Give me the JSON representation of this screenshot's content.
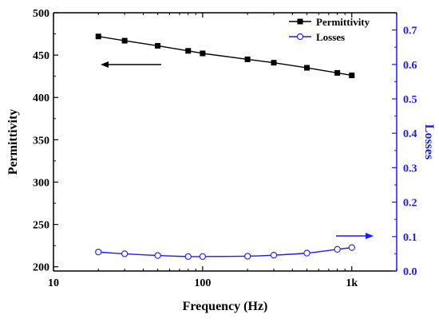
{
  "chart_data": {
    "type": "line",
    "xlabel": "Frequency (Hz)",
    "xscale": "log",
    "xlim": [
      10,
      2000
    ],
    "x_ticks": [
      10,
      100,
      1000
    ],
    "x_tick_labels": [
      "10",
      "100",
      "1k"
    ],
    "y_left": {
      "label": "Permittivity",
      "lim": [
        195,
        500
      ],
      "ticks": [
        200,
        250,
        300,
        350,
        400,
        450,
        500
      ],
      "color": "#000000"
    },
    "y_right": {
      "label": "Losses",
      "lim": [
        0.0,
        0.75
      ],
      "ticks": [
        0.0,
        0.1,
        0.2,
        0.3,
        0.4,
        0.5,
        0.6,
        0.7
      ],
      "color": "#1a1aff"
    },
    "legend_position": "top-right",
    "series": [
      {
        "name": "Permittivity",
        "axis": "left",
        "color": "#000000",
        "marker": "filled-square",
        "x": [
          20,
          30,
          50,
          80,
          100,
          200,
          300,
          500,
          800,
          1000
        ],
        "y": [
          472,
          467,
          461,
          455,
          452,
          445,
          441,
          435,
          429,
          426
        ]
      },
      {
        "name": "Losses",
        "axis": "right",
        "color": "#1a1aff",
        "marker": "open-circle",
        "x": [
          20,
          30,
          50,
          80,
          100,
          200,
          300,
          500,
          800,
          1000
        ],
        "y": [
          0.055,
          0.05,
          0.045,
          0.042,
          0.042,
          0.043,
          0.046,
          0.052,
          0.063,
          0.068
        ]
      }
    ],
    "annotations": [
      {
        "type": "arrow",
        "points_to": "left-axis",
        "color": "#000000"
      },
      {
        "type": "arrow",
        "points_to": "right-axis",
        "color": "#1a1aff"
      }
    ]
  }
}
